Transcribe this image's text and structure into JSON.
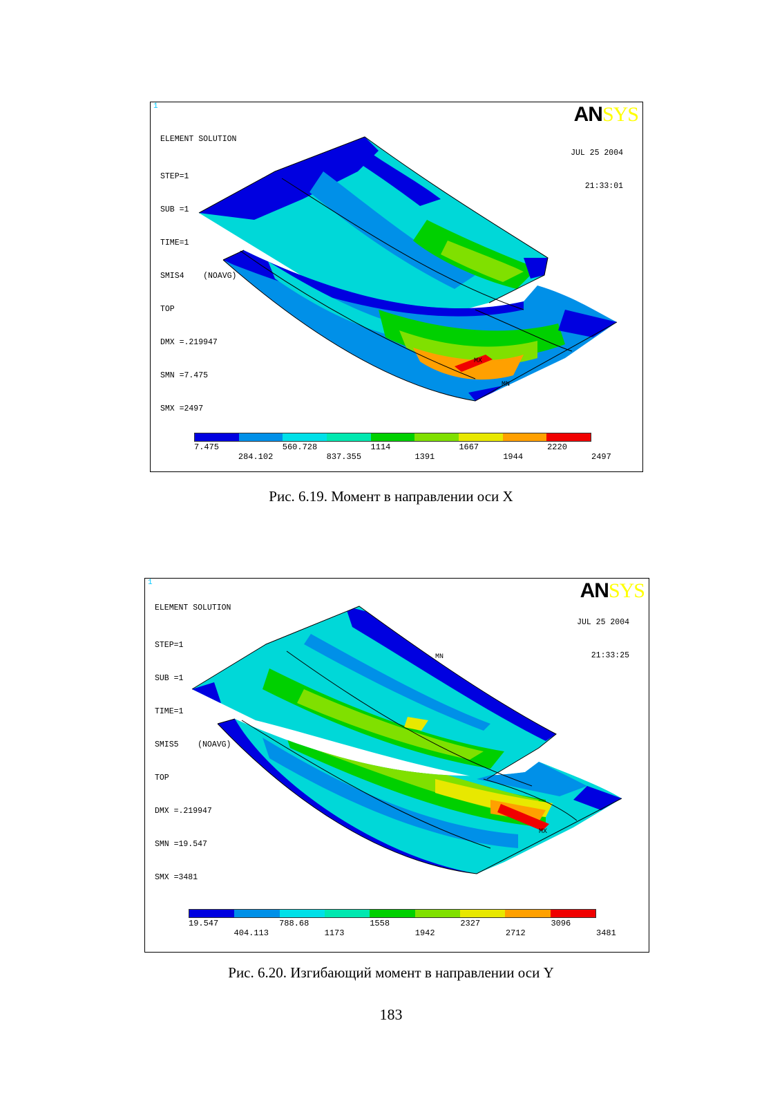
{
  "figure1": {
    "window_number": "1",
    "logo": {
      "part1": "AN",
      "part2": "SYS"
    },
    "date": "JUL 25 2004",
    "time": "21:33:01",
    "info": {
      "title": "ELEMENT SOLUTION",
      "step": "STEP=1",
      "sub": "SUB =1",
      "time_line": "TIME=1",
      "item": "SMIS4    (NOAVG)",
      "layer": "TOP",
      "dmx": "DMX =.219947",
      "smn": "SMN =7.475",
      "smx": "SMX =2497"
    },
    "markers": {
      "mx": "MX",
      "mn": "MN"
    },
    "legend_top": [
      "7.475",
      "560.728",
      "1114",
      "1667",
      "2220"
    ],
    "legend_bottom": [
      "284.102",
      "837.355",
      "1391",
      "1944",
      "2497"
    ],
    "caption": "Рис. 6.19. Момент в направлении оси X"
  },
  "figure2": {
    "window_number": "1",
    "logo": {
      "part1": "AN",
      "part2": "SYS"
    },
    "date": "JUL 25 2004",
    "time": "21:33:25",
    "info": {
      "title": "ELEMENT SOLUTION",
      "step": "STEP=1",
      "sub": "SUB =1",
      "time_line": "TIME=1",
      "item": "SMIS5    (NOAVG)",
      "layer": "TOP",
      "dmx": "DMX =.219947",
      "smn": "SMN =19.547",
      "smx": "SMX =3481"
    },
    "markers": {
      "mx": "MX",
      "mn": "MN"
    },
    "legend_top": [
      "19.547",
      "788.68",
      "1558",
      "2327",
      "3096"
    ],
    "legend_bottom": [
      "404.113",
      "1173",
      "1942",
      "2712",
      "3481"
    ],
    "caption": "Рис. 6.20. Изгибающий момент в направлении оси Y"
  },
  "legend_colors": [
    "#0000e0",
    "#0090e8",
    "#00e0e8",
    "#00e8b0",
    "#00d000",
    "#80e000",
    "#e8e800",
    "#ffa000",
    "#f00000"
  ],
  "page_number": "183"
}
